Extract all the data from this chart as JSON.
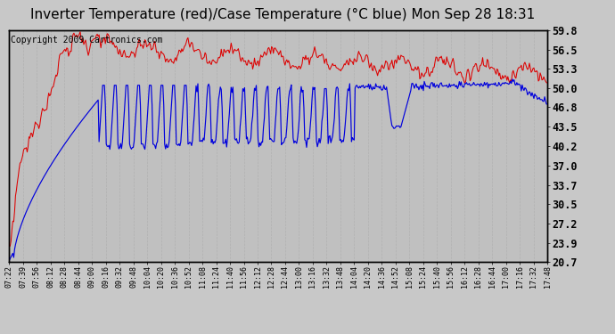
{
  "title": "Inverter Temperature (red)/Case Temperature (°C blue) Mon Sep 28 18:31",
  "copyright": "Copyright 2009 Cartronics.com",
  "y_min": 20.7,
  "y_max": 59.8,
  "y_ticks": [
    20.7,
    23.9,
    27.2,
    30.5,
    33.7,
    37.0,
    40.2,
    43.5,
    46.8,
    50.0,
    53.3,
    56.5,
    59.8
  ],
  "bg_color": "#c8c8c8",
  "plot_bg_color": "#c0c0c0",
  "grid_color": "#aaaaaa",
  "red_color": "#dd0000",
  "blue_color": "#0000dd",
  "title_fontsize": 11,
  "copyright_fontsize": 7,
  "tick_fontsize": 8.5,
  "x_label_fontsize": 6,
  "time_labels": [
    "07:22",
    "07:39",
    "07:56",
    "08:12",
    "08:28",
    "08:44",
    "09:00",
    "09:16",
    "09:32",
    "09:48",
    "10:04",
    "10:20",
    "10:36",
    "10:52",
    "11:08",
    "11:24",
    "11:40",
    "11:56",
    "12:12",
    "12:28",
    "12:44",
    "13:00",
    "13:16",
    "13:32",
    "13:48",
    "14:04",
    "14:20",
    "14:36",
    "14:52",
    "15:08",
    "15:24",
    "15:40",
    "15:56",
    "16:12",
    "16:28",
    "16:44",
    "17:00",
    "17:16",
    "17:32",
    "17:48"
  ]
}
